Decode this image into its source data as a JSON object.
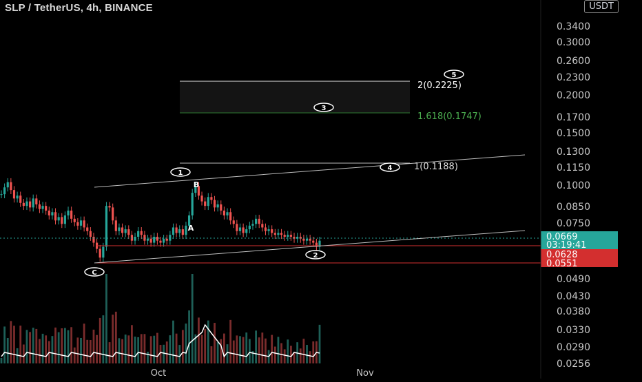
{
  "header": {
    "title": "SLP / TetherUS, 4h, BINANCE",
    "currency": "USDT"
  },
  "colors": {
    "background": "#000000",
    "up": "#26a69a",
    "down": "#ef5350",
    "grid": "#1b1b1b",
    "axis_text": "#c8c8c8",
    "last_price": "#26a69a",
    "stop_red": "#d32f2f",
    "fib_green": "#4caf50"
  },
  "chart_data": {
    "type": "candlestick",
    "title": "SLP / TetherUS, 4h, BINANCE",
    "y_scale": "log",
    "ylim": [
      0.0256,
      0.38
    ],
    "y_ticks": [
      "0.3400",
      "0.3000",
      "0.2600",
      "0.2300",
      "0.2000",
      "0.1700",
      "0.1500",
      "0.1300",
      "0.1150",
      "0.1000",
      "0.0850",
      "0.0750",
      "0.0669",
      "0.0628",
      "0.0551",
      "0.0490",
      "0.0430",
      "0.0380",
      "0.0330",
      "0.0290",
      "0.0256"
    ],
    "x_ticks": [
      "Oct",
      "Nov"
    ],
    "price_series": [
      0.095,
      0.1,
      0.104,
      0.098,
      0.092,
      0.094,
      0.089,
      0.087,
      0.09,
      0.086,
      0.092,
      0.088,
      0.085,
      0.087,
      0.084,
      0.081,
      0.083,
      0.078,
      0.08,
      0.076,
      0.081,
      0.084,
      0.079,
      0.077,
      0.075,
      0.078,
      0.074,
      0.072,
      0.069,
      0.066,
      0.063,
      0.059,
      0.064,
      0.087,
      0.086,
      0.078,
      0.072,
      0.074,
      0.071,
      0.073,
      0.07,
      0.067,
      0.069,
      0.072,
      0.07,
      0.067,
      0.068,
      0.066,
      0.069,
      0.067,
      0.066,
      0.068,
      0.067,
      0.07,
      0.074,
      0.071,
      0.073,
      0.07,
      0.075,
      0.081,
      0.096,
      0.101,
      0.094,
      0.09,
      0.087,
      0.093,
      0.091,
      0.086,
      0.088,
      0.084,
      0.081,
      0.083,
      0.078,
      0.076,
      0.072,
      0.074,
      0.071,
      0.073,
      0.075,
      0.076,
      0.079,
      0.076,
      0.074,
      0.072,
      0.073,
      0.071,
      0.07,
      0.071,
      0.07,
      0.069,
      0.07,
      0.069,
      0.068,
      0.069,
      0.068,
      0.067,
      0.068,
      0.067,
      0.066,
      0.064,
      0.067
    ],
    "price_labels": [
      {
        "value": "0.0669",
        "sub": "03:19:41",
        "color": "#26a69a"
      },
      {
        "value": "0.0628",
        "color": "#d32f2f"
      },
      {
        "value": "0.0551",
        "color": "#d32f2f"
      }
    ],
    "wave_labels": [
      "1",
      "2",
      "3",
      "4",
      "5",
      "A",
      "B",
      "C"
    ],
    "fib_levels": [
      {
        "label": "2(0.2225)",
        "value": 0.2225
      },
      {
        "label": "1.618(0.1747)",
        "value": 0.1747
      },
      {
        "label": "1(0.1188)",
        "value": 0.1188
      }
    ]
  }
}
